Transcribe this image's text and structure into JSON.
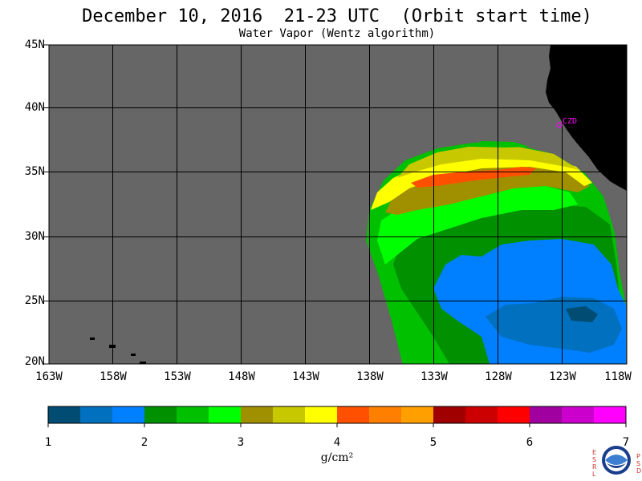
{
  "title": "December 10, 2016  21-23 UTC  (Orbit start time)",
  "subtitle": "Water Vapor (Wentz algorithm)",
  "map": {
    "background_color": "#666666",
    "land_color": "#000000",
    "grid_color": "#000000",
    "station_label": "CZD",
    "station_color": "#ff00ff",
    "latitude_labels": [
      "45N",
      "40N",
      "35N",
      "30N",
      "25N",
      "20N"
    ],
    "longitude_labels": [
      "163W",
      "158W",
      "153W",
      "148W",
      "143W",
      "138W",
      "133W",
      "128W",
      "123W",
      "118W"
    ]
  },
  "colorbar": {
    "colors": [
      "#004c73",
      "#0070bf",
      "#0080ff",
      "#009000",
      "#00c000",
      "#00ff00",
      "#a09000",
      "#c8c800",
      "#ffff00",
      "#ff5000",
      "#ff8000",
      "#ffa000",
      "#a00000",
      "#cc0000",
      "#ff0000",
      "#a000a0",
      "#cc00cc",
      "#ff00ff"
    ],
    "tick_labels": [
      "1",
      "2",
      "3",
      "4",
      "5",
      "6",
      "7"
    ],
    "units": "g/cm²"
  },
  "logo": {
    "left_letters": [
      "E",
      "S",
      "R",
      "L"
    ],
    "right_letters": [
      "P",
      "S",
      "D"
    ],
    "name": "noaa-logo"
  }
}
